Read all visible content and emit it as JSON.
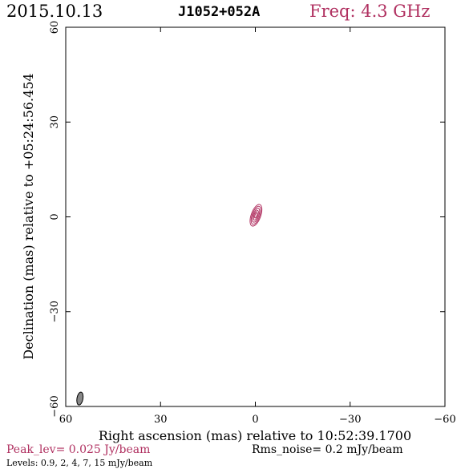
{
  "header": {
    "date": "2015.10.13",
    "source": "J1052+052A",
    "freq": "Freq: 4.3 GHz"
  },
  "footer": {
    "peak": "Peak_lev=  0.025 Jy/beam",
    "rms": "Rms_noise=   0.2 mJy/beam",
    "levels": "Levels: 0.9,    2,    4,    7,   15 mJy/beam"
  },
  "colors": {
    "accent": "#b03060",
    "beam": "#888888"
  },
  "chart_data": {
    "type": "contour",
    "xlabel": "Right ascension (mas) relative to 10:52:39.1700",
    "ylabel": "Declination (mas) relative to +05:24:56.454",
    "xlim": [
      60,
      -60
    ],
    "ylim": [
      -60,
      60
    ],
    "xticks": [
      60,
      30,
      0,
      -30,
      -60
    ],
    "yticks": [
      -60,
      -30,
      0,
      30,
      60
    ],
    "xtick_labels": [
      "60",
      "30",
      "0",
      "−30",
      "−60"
    ],
    "ytick_labels": [
      "−60",
      "−30",
      "0",
      "30",
      "60"
    ],
    "contour_levels_mJy": [
      0.9,
      2,
      4,
      7,
      15
    ],
    "source_center": [
      0,
      0
    ],
    "contours": [
      {
        "level": 0.9,
        "cx": -0.2,
        "cy": 0.5,
        "rx": 1.5,
        "ry": 3.6,
        "pa": 20
      },
      {
        "level": 2,
        "cx": -0.2,
        "cy": 0.5,
        "rx": 1.2,
        "ry": 3.0,
        "pa": 20
      },
      {
        "level": 4,
        "cx": -0.2,
        "cy": 0.5,
        "rx": 0.9,
        "ry": 2.3,
        "pa": 20
      },
      {
        "level": 7,
        "cx": -0.2,
        "cy": 0.5,
        "rx": 0.6,
        "ry": 1.6,
        "pa": 20
      },
      {
        "level": 15,
        "cx": -0.2,
        "cy": 0.5,
        "rx": 0.3,
        "ry": 0.9,
        "pa": 20
      }
    ],
    "beam": {
      "cx": 55.5,
      "cy": -57.5,
      "rx": 0.7,
      "ry": 1.8,
      "pa": 10
    }
  }
}
